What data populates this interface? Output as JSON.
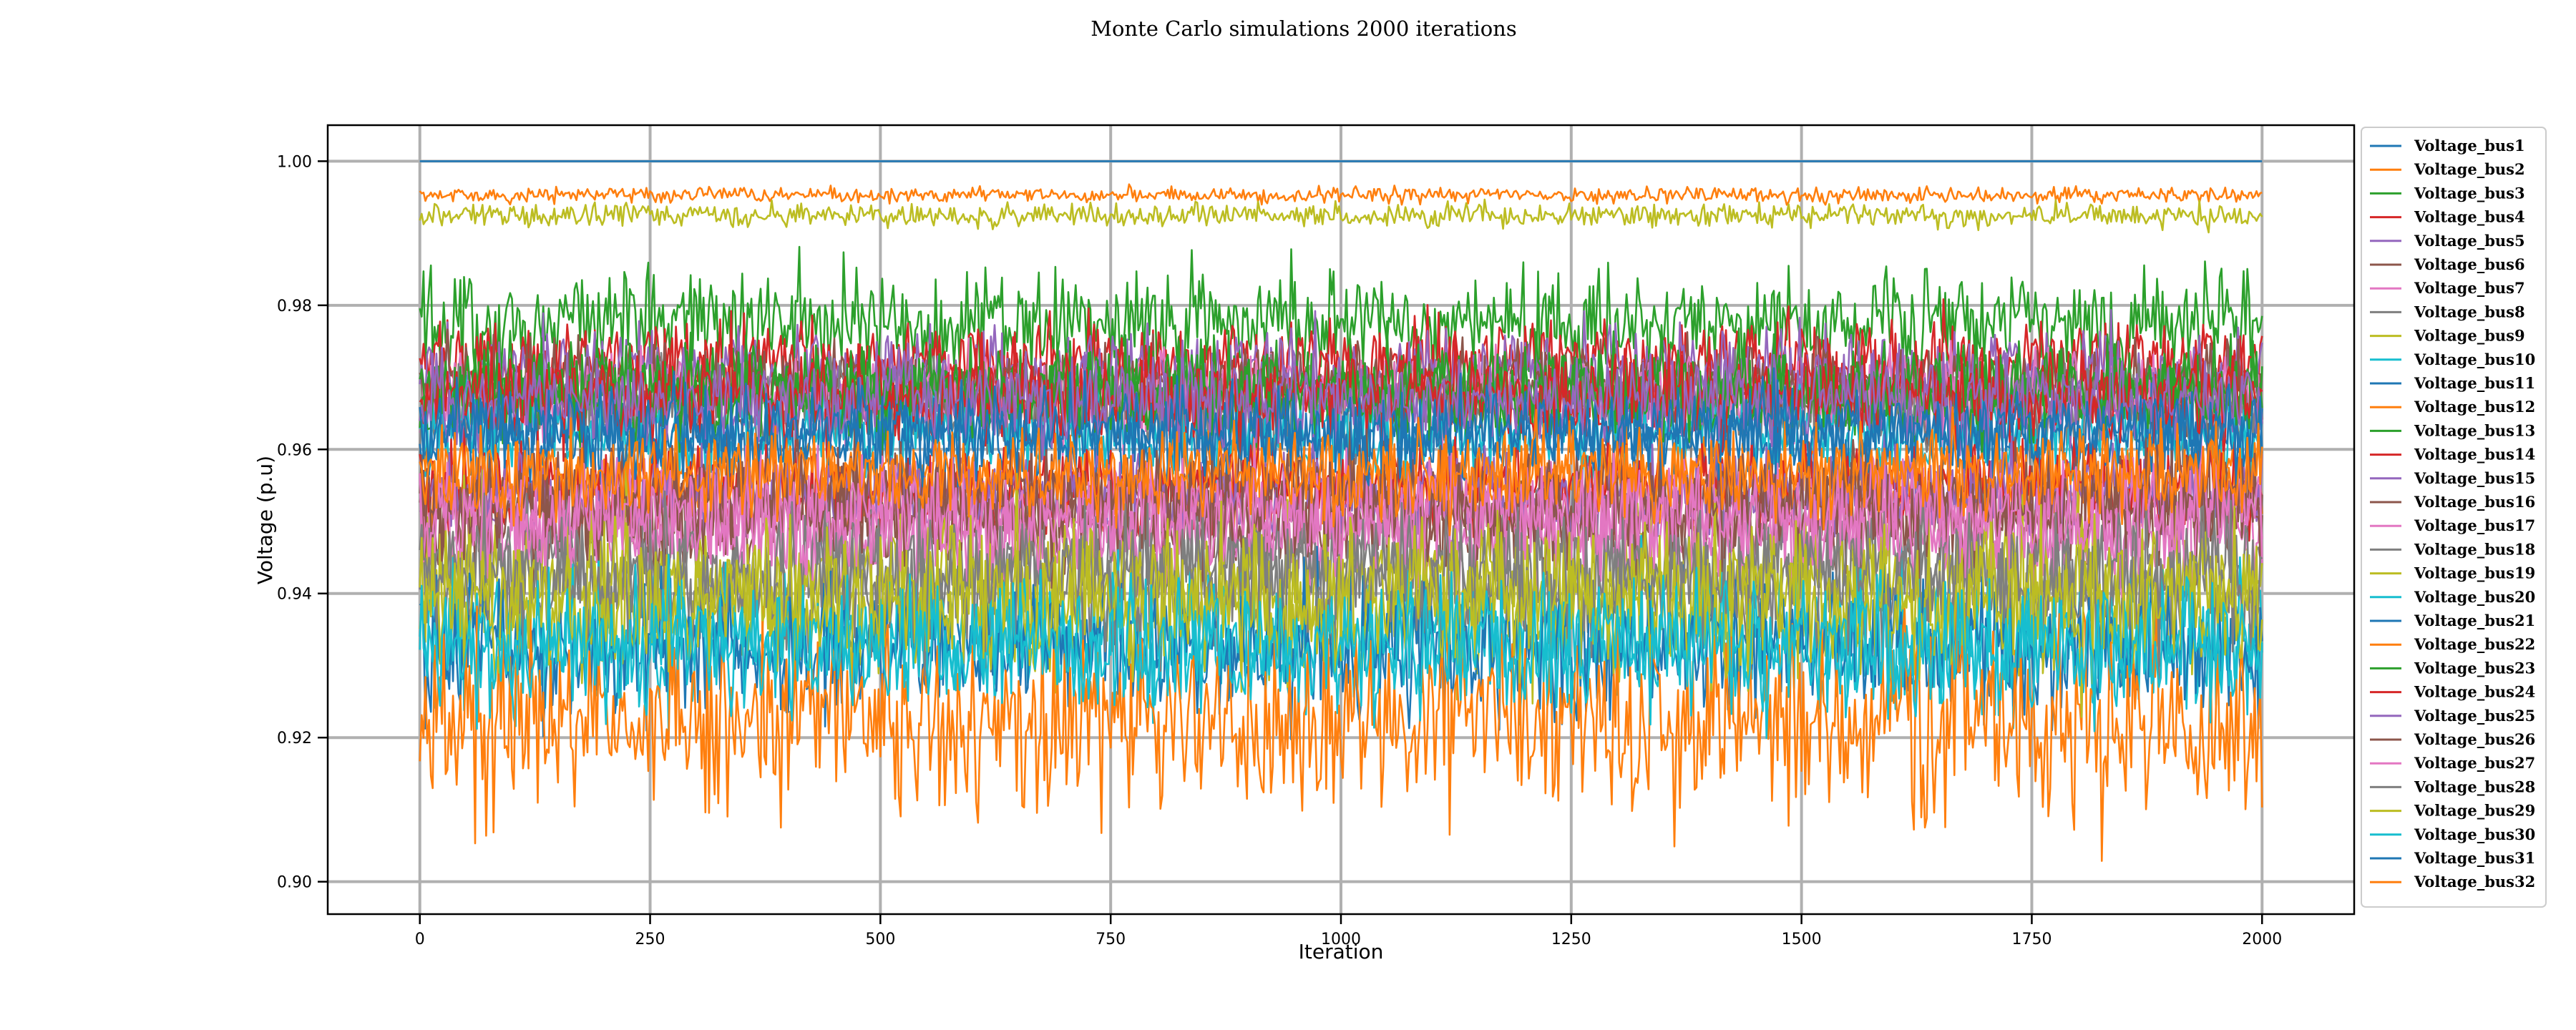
{
  "chart_data": {
    "type": "line",
    "title": "Monte Carlo simulations 2000 iterations",
    "xlabel": "Iteration",
    "ylabel": "Voltage (p.u)",
    "xlim": [
      -100,
      2100
    ],
    "ylim": [
      0.8955,
      1.005
    ],
    "x_ticks": [
      0,
      250,
      500,
      750,
      1000,
      1250,
      1500,
      1750,
      2000
    ],
    "x_tick_labels": [
      "0",
      "250",
      "500",
      "750",
      "1000",
      "1250",
      "1500",
      "1750",
      "2000"
    ],
    "y_ticks": [
      0.9,
      0.92,
      0.94,
      0.96,
      0.98,
      1.0
    ],
    "y_tick_labels": [
      "0.90",
      "0.92",
      "0.94",
      "0.96",
      "0.98",
      "1.00"
    ],
    "x_range": [
      0,
      2000
    ],
    "grid": true,
    "legend_position": "outside-right",
    "series": [
      {
        "name": "Voltage_bus1",
        "color": "#1f77b4",
        "mean": 1.0,
        "spread": 0.0
      },
      {
        "name": "Voltage_bus2",
        "color": "#ff7f0e",
        "mean": 0.9953,
        "spread": 0.0005
      },
      {
        "name": "Voltage_bus3",
        "color": "#2ca02c",
        "mean": 0.9775,
        "spread": 0.0035
      },
      {
        "name": "Voltage_bus4",
        "color": "#d62728",
        "mean": 0.9725,
        "spread": 0.0028
      },
      {
        "name": "Voltage_bus5",
        "color": "#9467bd",
        "mean": 0.9705,
        "spread": 0.003
      },
      {
        "name": "Voltage_bus6",
        "color": "#8c564b",
        "mean": 0.9685,
        "spread": 0.003
      },
      {
        "name": "Voltage_bus7",
        "color": "#e377c2",
        "mean": 0.967,
        "spread": 0.003
      },
      {
        "name": "Voltage_bus8",
        "color": "#7f7f7f",
        "mean": 0.9655,
        "spread": 0.003
      },
      {
        "name": "Voltage_bus9",
        "color": "#bcbd22",
        "mean": 0.9925,
        "spread": 0.0008
      },
      {
        "name": "Voltage_bus10",
        "color": "#17becf",
        "mean": 0.962,
        "spread": 0.003
      },
      {
        "name": "Voltage_bus11",
        "color": "#1f77b4",
        "mean": 0.9615,
        "spread": 0.003
      },
      {
        "name": "Voltage_bus12",
        "color": "#ff7f0e",
        "mean": 0.9555,
        "spread": 0.003
      },
      {
        "name": "Voltage_bus13",
        "color": "#2ca02c",
        "mean": 0.9685,
        "spread": 0.003
      },
      {
        "name": "Voltage_bus14",
        "color": "#d62728",
        "mean": 0.9545,
        "spread": 0.003
      },
      {
        "name": "Voltage_bus15",
        "color": "#9467bd",
        "mean": 0.9535,
        "spread": 0.003
      },
      {
        "name": "Voltage_bus16",
        "color": "#8c564b",
        "mean": 0.9505,
        "spread": 0.004
      },
      {
        "name": "Voltage_bus17",
        "color": "#e377c2",
        "mean": 0.949,
        "spread": 0.004
      },
      {
        "name": "Voltage_bus18",
        "color": "#7f7f7f",
        "mean": 0.943,
        "spread": 0.0045
      },
      {
        "name": "Voltage_bus19",
        "color": "#bcbd22",
        "mean": 0.9405,
        "spread": 0.005
      },
      {
        "name": "Voltage_bus20",
        "color": "#17becf",
        "mean": 0.9335,
        "spread": 0.0045
      },
      {
        "name": "Voltage_bus21",
        "color": "#1f77b4",
        "mean": 0.9325,
        "spread": 0.0045
      },
      {
        "name": "Voltage_bus22",
        "color": "#ff7f0e",
        "mean": 0.9225,
        "spread": 0.006
      },
      {
        "name": "Voltage_bus23",
        "color": "#2ca02c",
        "mean": 0.9675,
        "spread": 0.003
      },
      {
        "name": "Voltage_bus24",
        "color": "#d62728",
        "mean": 0.9675,
        "spread": 0.003
      },
      {
        "name": "Voltage_bus25",
        "color": "#9467bd",
        "mean": 0.9665,
        "spread": 0.003
      },
      {
        "name": "Voltage_bus26",
        "color": "#8c564b",
        "mean": 0.9525,
        "spread": 0.004
      },
      {
        "name": "Voltage_bus27",
        "color": "#e377c2",
        "mean": 0.9505,
        "spread": 0.004
      },
      {
        "name": "Voltage_bus28",
        "color": "#7f7f7f",
        "mean": 0.9415,
        "spread": 0.0045
      },
      {
        "name": "Voltage_bus29",
        "color": "#bcbd22",
        "mean": 0.9385,
        "spread": 0.005
      },
      {
        "name": "Voltage_bus30",
        "color": "#17becf",
        "mean": 0.9325,
        "spread": 0.0045
      },
      {
        "name": "Voltage_bus31",
        "color": "#1f77b4",
        "mean": 0.9625,
        "spread": 0.003
      },
      {
        "name": "Voltage_bus32",
        "color": "#ff7f0e",
        "mean": 0.9565,
        "spread": 0.003
      }
    ]
  }
}
